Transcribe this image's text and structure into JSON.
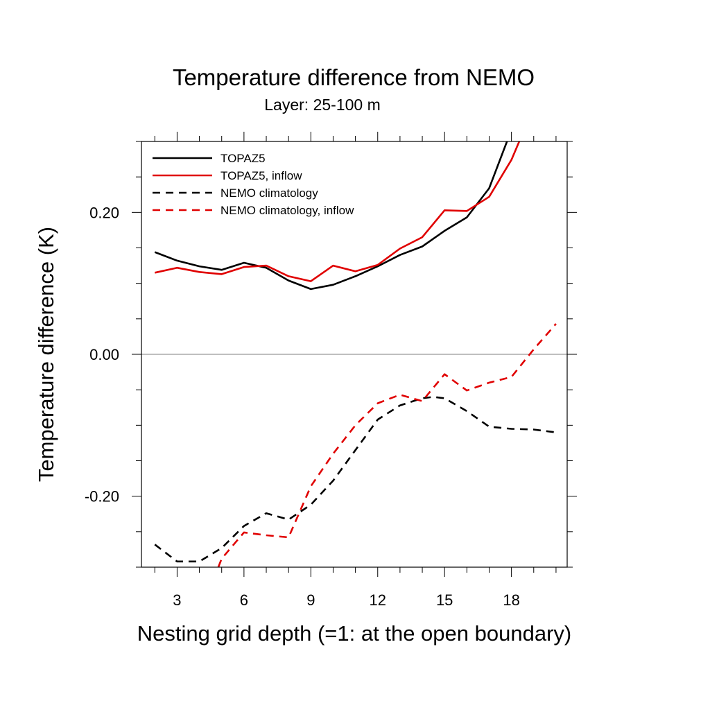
{
  "chart_data": {
    "type": "line",
    "title": "Temperature difference from NEMO",
    "subtitle": "Layer: 25-100 m",
    "xlabel": "Nesting grid depth (=1: at the open boundary)",
    "ylabel": "Temperature difference (K)",
    "xlim": [
      1.4,
      20.5
    ],
    "ylim": [
      -0.3,
      0.3
    ],
    "x_ticks": [
      3,
      6,
      9,
      12,
      15,
      18
    ],
    "x_tick_labels": [
      "3",
      "6",
      "9",
      "12",
      "15",
      "18"
    ],
    "y_ticks": [
      -0.2,
      0.0,
      0.2
    ],
    "y_tick_labels": [
      "-0.20",
      "0.00",
      "0.20"
    ],
    "reference_line": 0.0,
    "legend_position": "top-left",
    "series": [
      {
        "name": "TOPAZ5",
        "color": "#000000",
        "dash": "solid",
        "x": [
          2,
          3,
          4,
          5,
          6,
          7,
          8,
          9,
          10,
          11,
          12,
          13,
          14,
          15,
          16,
          17,
          17.8
        ],
        "y": [
          0.144,
          0.132,
          0.124,
          0.119,
          0.129,
          0.122,
          0.104,
          0.092,
          0.098,
          0.11,
          0.124,
          0.14,
          0.152,
          0.174,
          0.193,
          0.234,
          0.3
        ]
      },
      {
        "name": "TOPAZ5, inflow",
        "color": "#e00000",
        "dash": "solid",
        "x": [
          2,
          3,
          4,
          5,
          6,
          7,
          8,
          9,
          10,
          11,
          12,
          13,
          14,
          15,
          16,
          17,
          18,
          18.35
        ],
        "y": [
          0.115,
          0.122,
          0.116,
          0.113,
          0.123,
          0.125,
          0.11,
          0.103,
          0.125,
          0.117,
          0.126,
          0.149,
          0.165,
          0.203,
          0.202,
          0.222,
          0.274,
          0.3
        ]
      },
      {
        "name": "NEMO climatology",
        "color": "#000000",
        "dash": "dashed",
        "x": [
          2,
          3,
          4,
          5,
          6,
          7,
          8,
          9,
          10,
          11,
          12,
          13,
          14,
          14.5,
          15,
          16,
          17,
          18,
          19,
          20
        ],
        "y": [
          -0.268,
          -0.292,
          -0.292,
          -0.273,
          -0.242,
          -0.224,
          -0.233,
          -0.212,
          -0.178,
          -0.135,
          -0.092,
          -0.072,
          -0.062,
          -0.06,
          -0.062,
          -0.08,
          -0.102,
          -0.105,
          -0.106,
          -0.11
        ]
      },
      {
        "name": "NEMO climatology, inflow",
        "color": "#e00000",
        "dash": "dashed",
        "x": [
          4.85,
          5,
          6,
          7,
          8,
          9,
          10,
          11,
          12,
          13,
          14,
          15,
          16,
          17,
          18,
          19,
          20
        ],
        "y": [
          -0.3,
          -0.288,
          -0.251,
          -0.255,
          -0.258,
          -0.186,
          -0.14,
          -0.1,
          -0.069,
          -0.057,
          -0.066,
          -0.028,
          -0.051,
          -0.04,
          -0.032,
          0.007,
          0.043
        ]
      }
    ]
  }
}
